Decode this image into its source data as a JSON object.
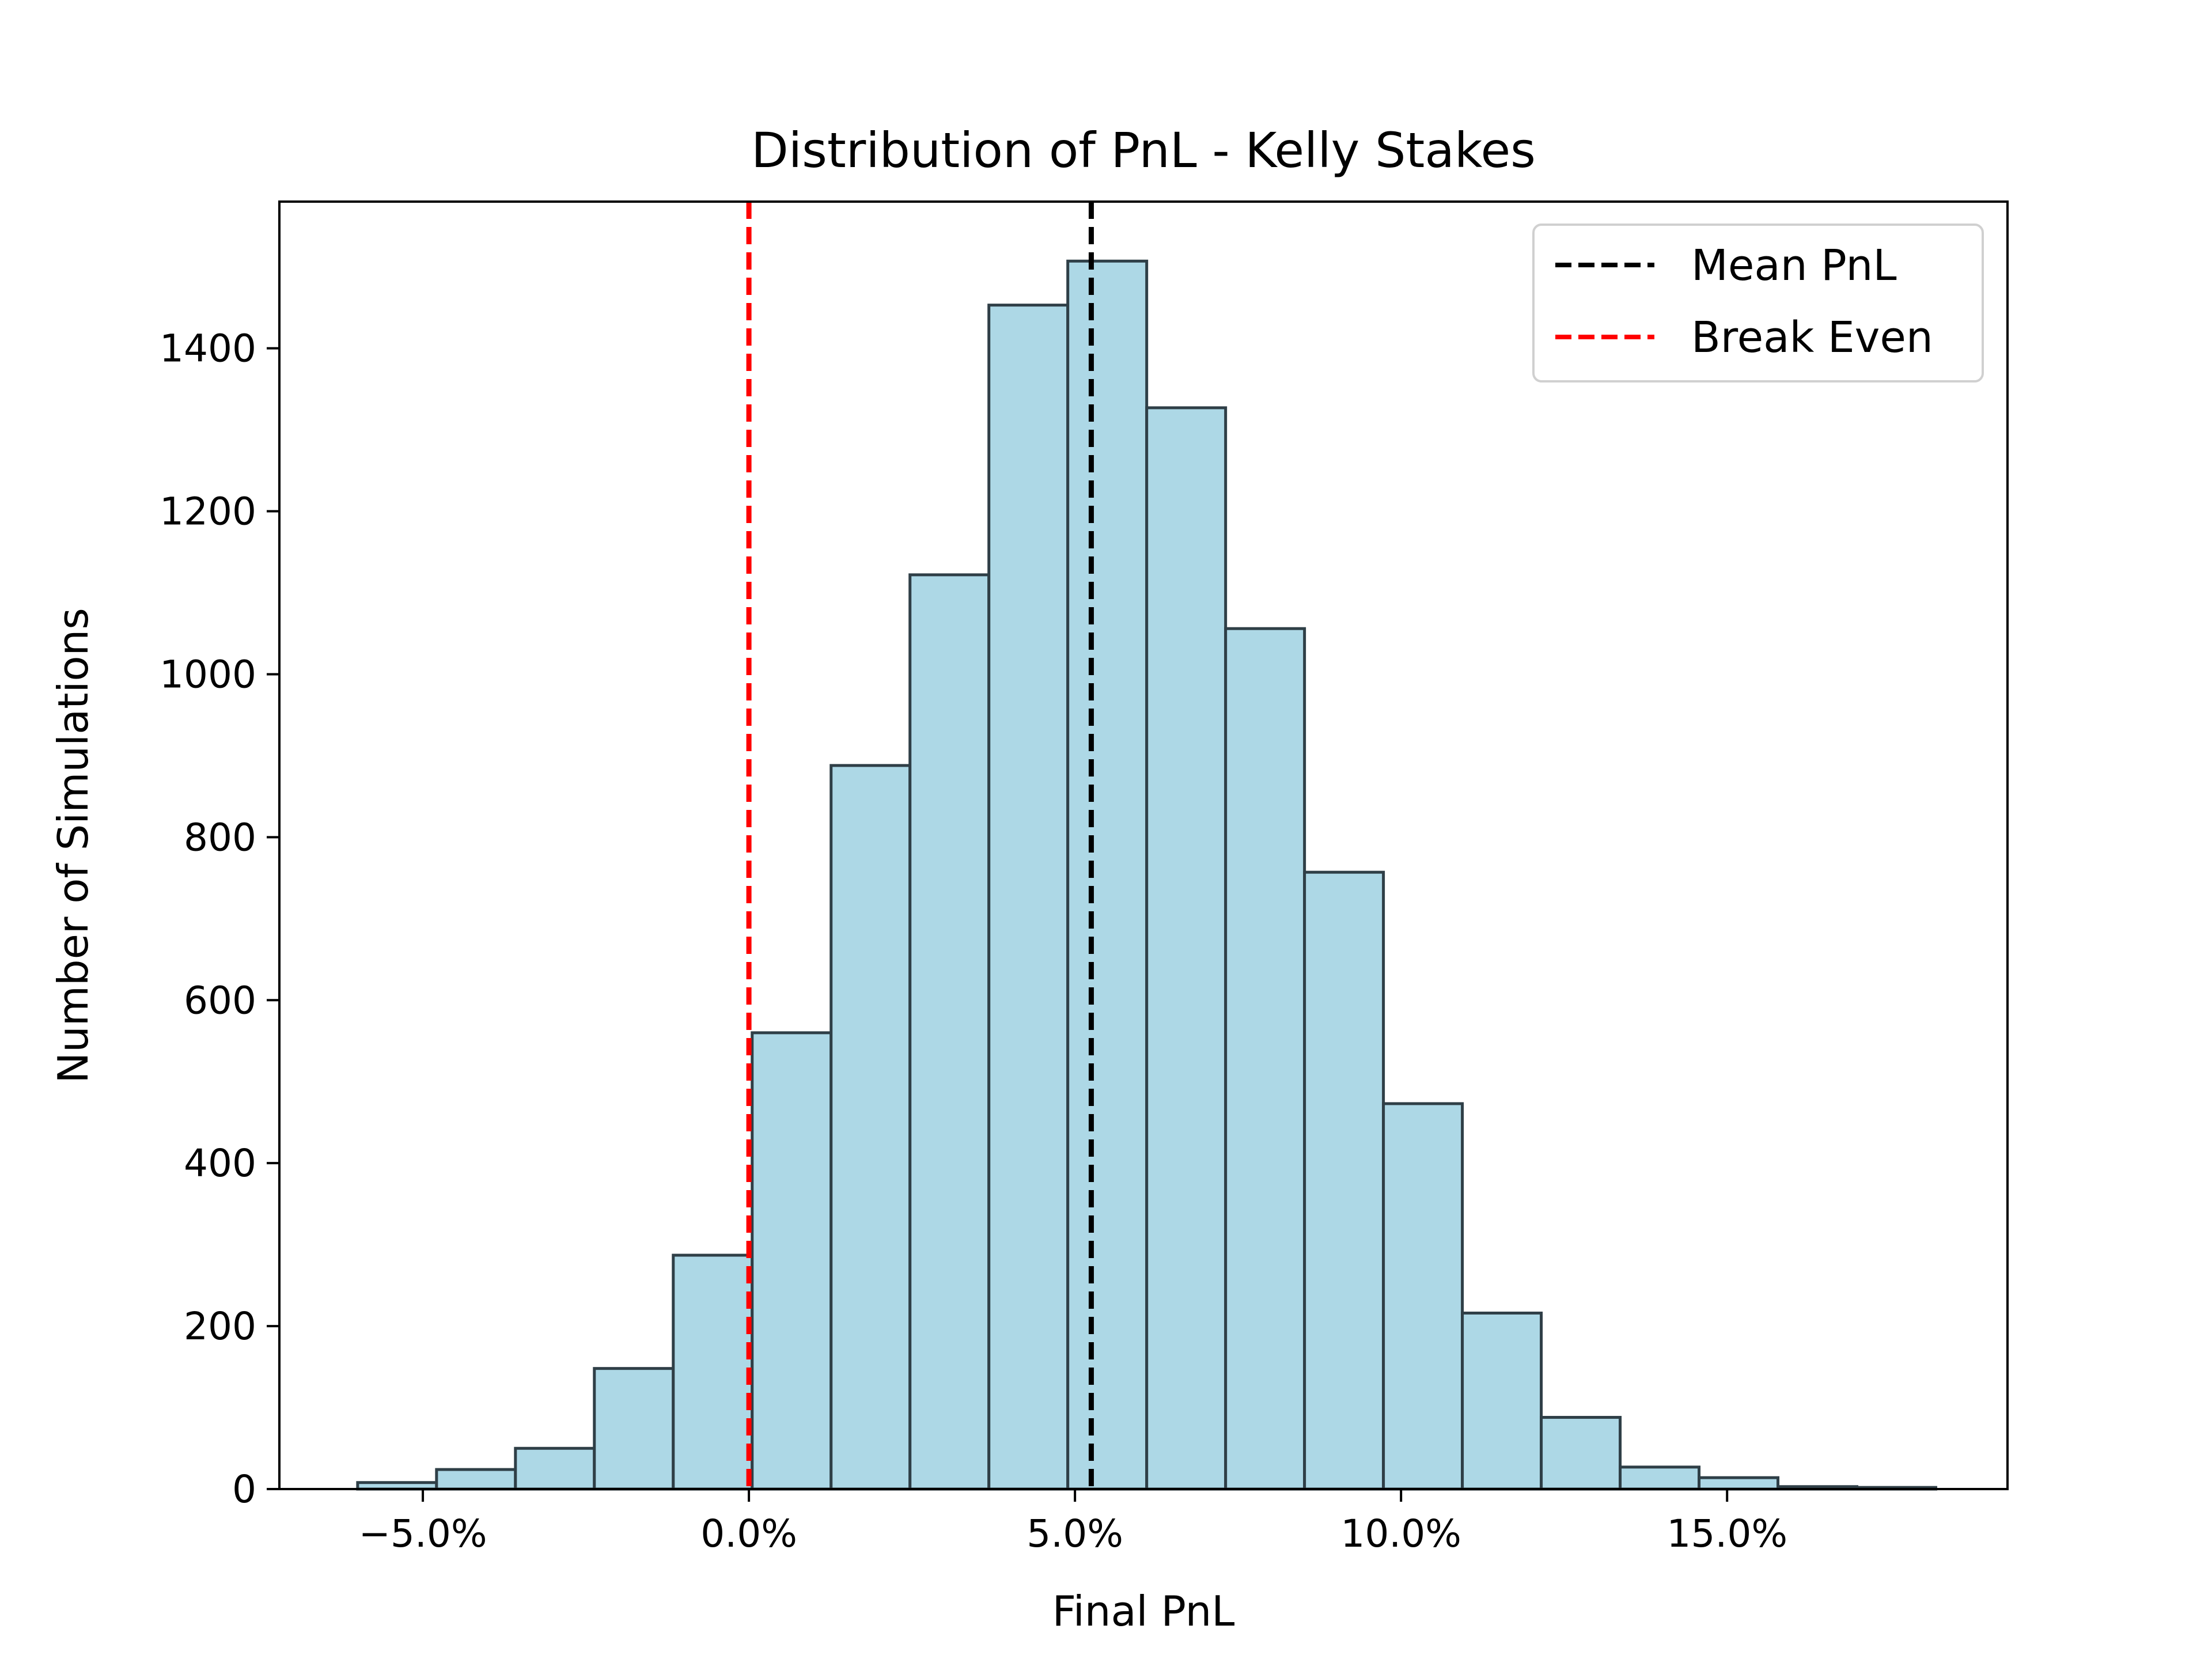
{
  "chart_data": {
    "type": "bar",
    "subtype": "histogram",
    "title": "Distribution of PnL - Kelly Stakes",
    "xlabel": "Final PnL",
    "ylabel": "Number of Simulations",
    "xlim": [
      -0.072,
      0.193
    ],
    "ylim": [
      0,
      1580
    ],
    "x_ticks": [
      {
        "value": -0.05,
        "label": "−5.0%"
      },
      {
        "value": 0.0,
        "label": "0.0%"
      },
      {
        "value": 0.05,
        "label": "5.0%"
      },
      {
        "value": 0.1,
        "label": "10.0%"
      },
      {
        "value": 0.15,
        "label": "15.0%"
      }
    ],
    "y_ticks": [
      {
        "value": 0,
        "label": "0"
      },
      {
        "value": 200,
        "label": "200"
      },
      {
        "value": 400,
        "label": "400"
      },
      {
        "value": 600,
        "label": "600"
      },
      {
        "value": 800,
        "label": "800"
      },
      {
        "value": 1000,
        "label": "1000"
      },
      {
        "value": 1200,
        "label": "1200"
      },
      {
        "value": 1400,
        "label": "1400"
      }
    ],
    "bin_edges": [
      -0.06,
      -0.0479,
      -0.0358,
      -0.0237,
      -0.0116,
      0.0005,
      0.0126,
      0.0247,
      0.0368,
      0.0489,
      0.061,
      0.0731,
      0.0852,
      0.0973,
      0.1094,
      0.1215,
      0.1336,
      0.1457,
      0.1578,
      0.1699,
      0.182
    ],
    "counts": [
      8,
      24,
      50,
      148,
      287,
      560,
      888,
      1122,
      1453,
      1507,
      1327,
      1056,
      757,
      473,
      216,
      88,
      27,
      14,
      3,
      2
    ],
    "bar_color": "#add8e6",
    "edge_color": "#2f3f47",
    "grid": false,
    "vlines": [
      {
        "name": "Mean PnL",
        "x": 0.0525,
        "color": "#000000",
        "style": "dashed"
      },
      {
        "name": "Break Even",
        "x": 0.0,
        "color": "#ff0000",
        "style": "dashed"
      }
    ],
    "legend": {
      "position": "top-right",
      "entries": [
        {
          "label": "Mean PnL",
          "color": "#000000"
        },
        {
          "label": "Break Even",
          "color": "#ff0000"
        }
      ]
    }
  }
}
